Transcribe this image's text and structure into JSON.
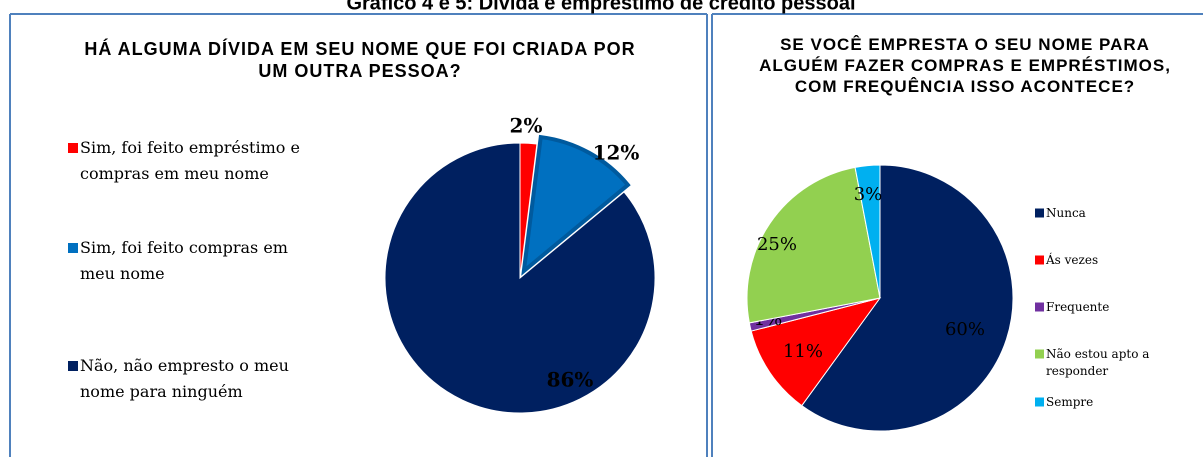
{
  "page_title": "Gráfico 4 e 5: Dívida e empréstimo de crédito pessoal",
  "chart_data": [
    {
      "type": "pie",
      "title": "HÁ ALGUMA DÍVIDA EM SEU NOME QUE FOI CRIADA POR UM OUTRA PESSOA?",
      "categories": [
        "Sim, foi feito empréstimo e compras em meu nome",
        "Sim, foi feito compras em meu nome",
        "Não, não empresto o meu nome para ninguém"
      ],
      "values": [
        2,
        12,
        86
      ],
      "value_labels": [
        "2%",
        "12%",
        "86%"
      ],
      "colors": [
        "#ff0000",
        "#0070c0",
        "#002060"
      ],
      "legend": "left"
    },
    {
      "type": "pie",
      "title": "SE VOCÊ EMPRESTA O SEU NOME PARA ALGUÉM FAZER COMPRAS E EMPRÉSTIMOS, COM FREQUÊNCIA ISSO ACONTECE?",
      "categories": [
        "Nunca",
        "Ás vezes",
        "Frequente",
        "Não estou apto a responder",
        "Sempre"
      ],
      "values": [
        60,
        11,
        1,
        25,
        3
      ],
      "value_labels": [
        "60%",
        "11%",
        "1%",
        "25%",
        "3%"
      ],
      "colors": [
        "#002060",
        "#ff0000",
        "#7030a0",
        "#92d050",
        "#00b0f0"
      ],
      "legend": "right"
    }
  ]
}
